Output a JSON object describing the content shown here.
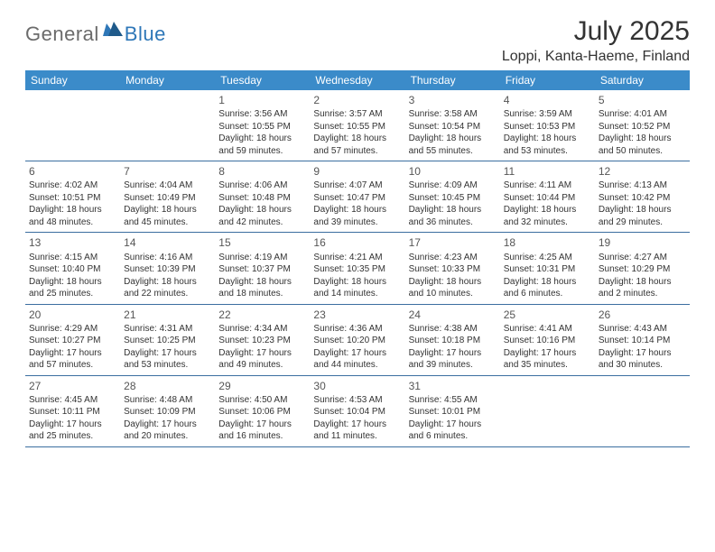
{
  "logo": {
    "general": "General",
    "blue": "Blue"
  },
  "title": "July 2025",
  "location": "Loppi, Kanta-Haeme, Finland",
  "colors": {
    "header_bg": "#3b8bc9",
    "header_text": "#ffffff",
    "row_border": "#3b6ea0",
    "body_text": "#333333",
    "logo_gray": "#6b6b6b",
    "logo_blue": "#2e77b8"
  },
  "dow": [
    "Sunday",
    "Monday",
    "Tuesday",
    "Wednesday",
    "Thursday",
    "Friday",
    "Saturday"
  ],
  "weeks": [
    [
      null,
      null,
      {
        "n": "1",
        "sr": "3:56 AM",
        "ss": "10:55 PM",
        "dl": "18 hours and 59 minutes."
      },
      {
        "n": "2",
        "sr": "3:57 AM",
        "ss": "10:55 PM",
        "dl": "18 hours and 57 minutes."
      },
      {
        "n": "3",
        "sr": "3:58 AM",
        "ss": "10:54 PM",
        "dl": "18 hours and 55 minutes."
      },
      {
        "n": "4",
        "sr": "3:59 AM",
        "ss": "10:53 PM",
        "dl": "18 hours and 53 minutes."
      },
      {
        "n": "5",
        "sr": "4:01 AM",
        "ss": "10:52 PM",
        "dl": "18 hours and 50 minutes."
      }
    ],
    [
      {
        "n": "6",
        "sr": "4:02 AM",
        "ss": "10:51 PM",
        "dl": "18 hours and 48 minutes."
      },
      {
        "n": "7",
        "sr": "4:04 AM",
        "ss": "10:49 PM",
        "dl": "18 hours and 45 minutes."
      },
      {
        "n": "8",
        "sr": "4:06 AM",
        "ss": "10:48 PM",
        "dl": "18 hours and 42 minutes."
      },
      {
        "n": "9",
        "sr": "4:07 AM",
        "ss": "10:47 PM",
        "dl": "18 hours and 39 minutes."
      },
      {
        "n": "10",
        "sr": "4:09 AM",
        "ss": "10:45 PM",
        "dl": "18 hours and 36 minutes."
      },
      {
        "n": "11",
        "sr": "4:11 AM",
        "ss": "10:44 PM",
        "dl": "18 hours and 32 minutes."
      },
      {
        "n": "12",
        "sr": "4:13 AM",
        "ss": "10:42 PM",
        "dl": "18 hours and 29 minutes."
      }
    ],
    [
      {
        "n": "13",
        "sr": "4:15 AM",
        "ss": "10:40 PM",
        "dl": "18 hours and 25 minutes."
      },
      {
        "n": "14",
        "sr": "4:16 AM",
        "ss": "10:39 PM",
        "dl": "18 hours and 22 minutes."
      },
      {
        "n": "15",
        "sr": "4:19 AM",
        "ss": "10:37 PM",
        "dl": "18 hours and 18 minutes."
      },
      {
        "n": "16",
        "sr": "4:21 AM",
        "ss": "10:35 PM",
        "dl": "18 hours and 14 minutes."
      },
      {
        "n": "17",
        "sr": "4:23 AM",
        "ss": "10:33 PM",
        "dl": "18 hours and 10 minutes."
      },
      {
        "n": "18",
        "sr": "4:25 AM",
        "ss": "10:31 PM",
        "dl": "18 hours and 6 minutes."
      },
      {
        "n": "19",
        "sr": "4:27 AM",
        "ss": "10:29 PM",
        "dl": "18 hours and 2 minutes."
      }
    ],
    [
      {
        "n": "20",
        "sr": "4:29 AM",
        "ss": "10:27 PM",
        "dl": "17 hours and 57 minutes."
      },
      {
        "n": "21",
        "sr": "4:31 AM",
        "ss": "10:25 PM",
        "dl": "17 hours and 53 minutes."
      },
      {
        "n": "22",
        "sr": "4:34 AM",
        "ss": "10:23 PM",
        "dl": "17 hours and 49 minutes."
      },
      {
        "n": "23",
        "sr": "4:36 AM",
        "ss": "10:20 PM",
        "dl": "17 hours and 44 minutes."
      },
      {
        "n": "24",
        "sr": "4:38 AM",
        "ss": "10:18 PM",
        "dl": "17 hours and 39 minutes."
      },
      {
        "n": "25",
        "sr": "4:41 AM",
        "ss": "10:16 PM",
        "dl": "17 hours and 35 minutes."
      },
      {
        "n": "26",
        "sr": "4:43 AM",
        "ss": "10:14 PM",
        "dl": "17 hours and 30 minutes."
      }
    ],
    [
      {
        "n": "27",
        "sr": "4:45 AM",
        "ss": "10:11 PM",
        "dl": "17 hours and 25 minutes."
      },
      {
        "n": "28",
        "sr": "4:48 AM",
        "ss": "10:09 PM",
        "dl": "17 hours and 20 minutes."
      },
      {
        "n": "29",
        "sr": "4:50 AM",
        "ss": "10:06 PM",
        "dl": "17 hours and 16 minutes."
      },
      {
        "n": "30",
        "sr": "4:53 AM",
        "ss": "10:04 PM",
        "dl": "17 hours and 11 minutes."
      },
      {
        "n": "31",
        "sr": "4:55 AM",
        "ss": "10:01 PM",
        "dl": "17 hours and 6 minutes."
      },
      null,
      null
    ]
  ],
  "labels": {
    "sunrise": "Sunrise:",
    "sunset": "Sunset:",
    "daylight": "Daylight:"
  }
}
